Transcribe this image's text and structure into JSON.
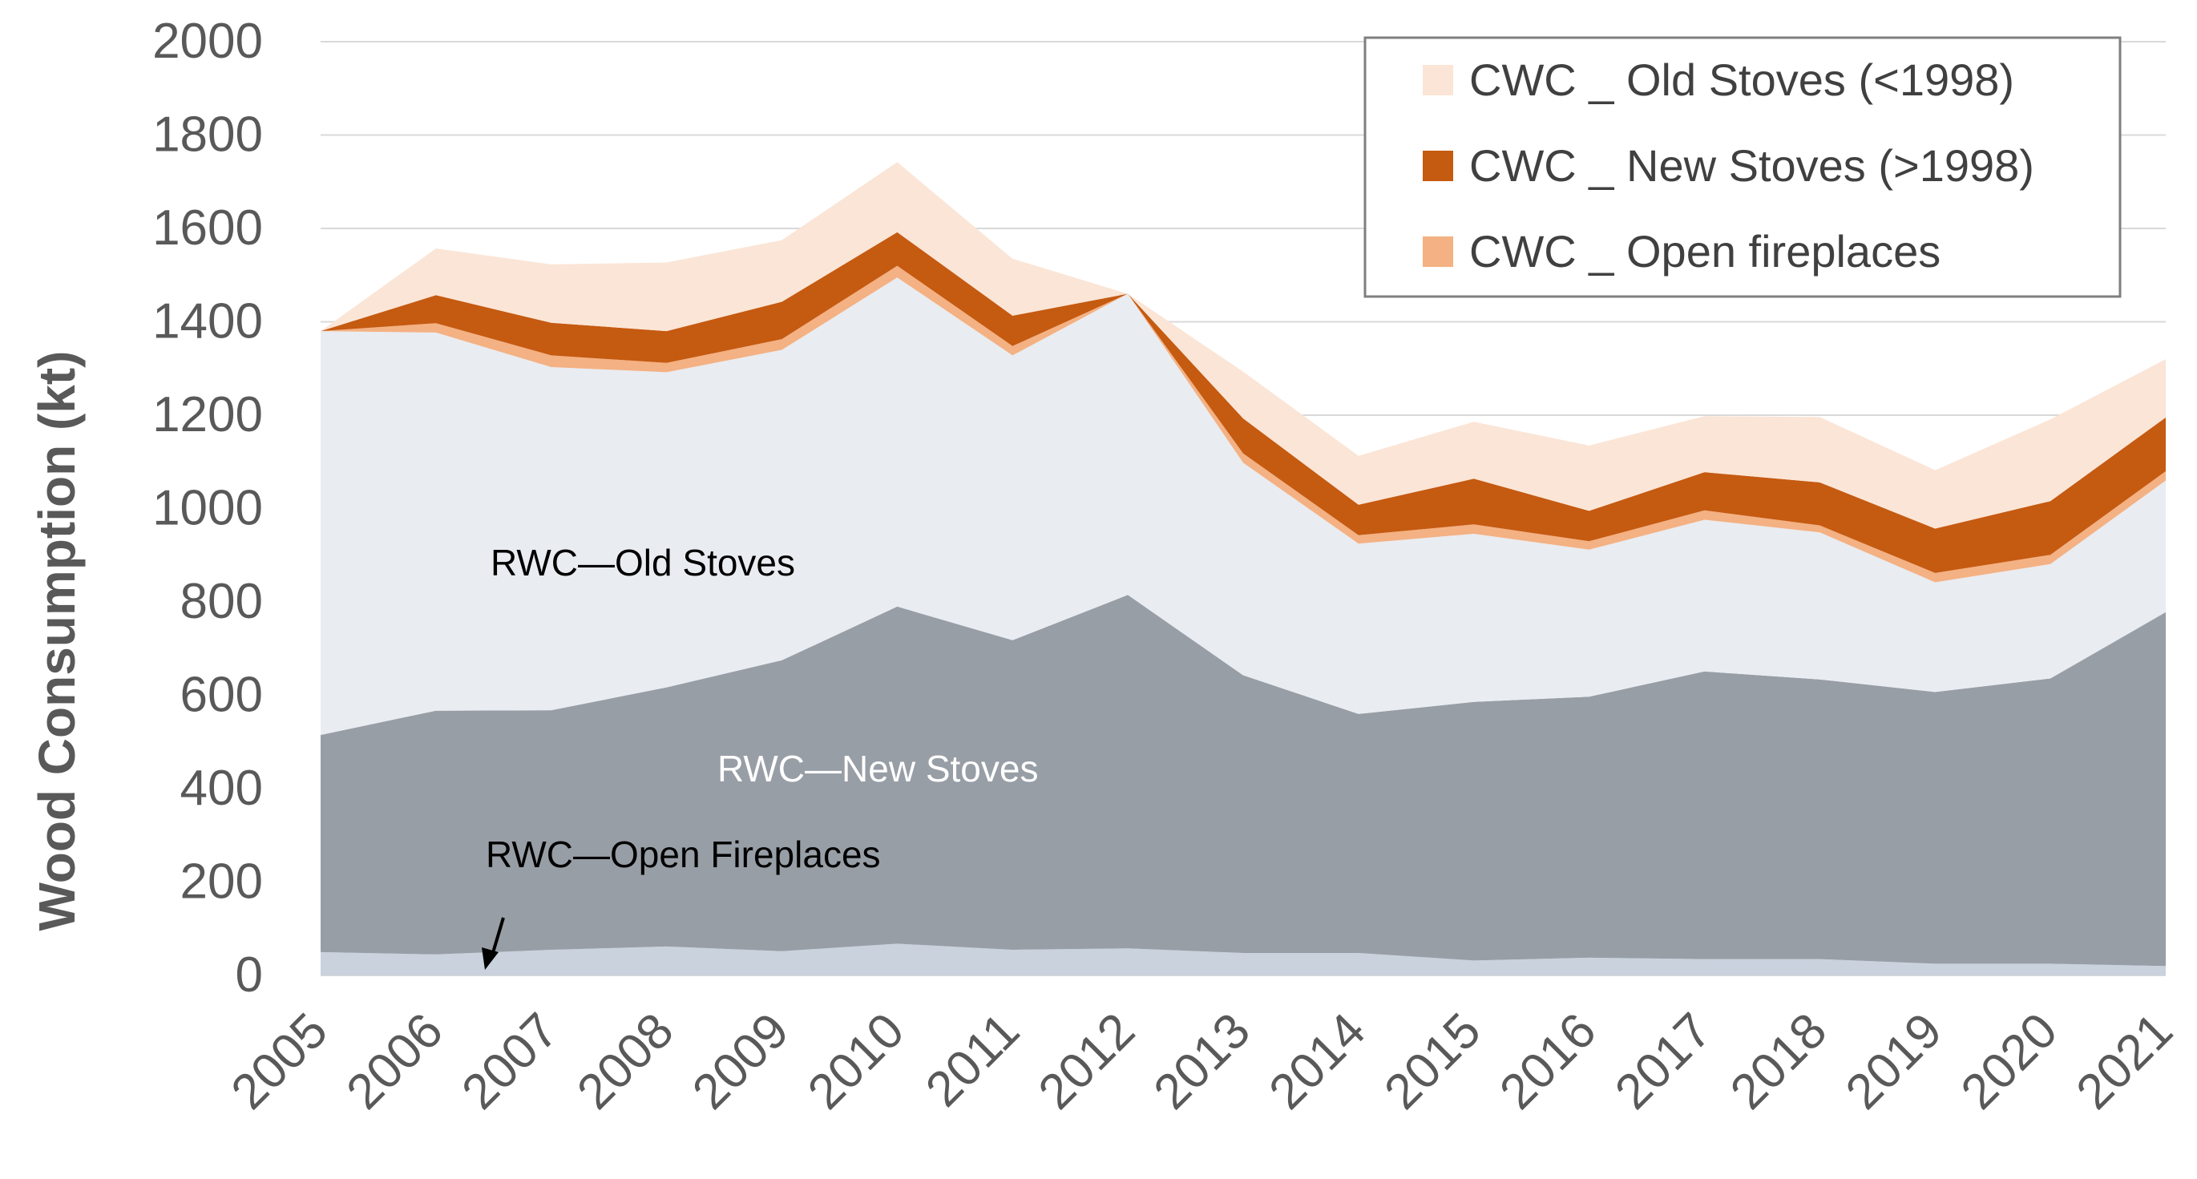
{
  "chart_data": {
    "type": "area",
    "stacked": true,
    "title": "",
    "xlabel": "",
    "ylabel": "Wood Consumption (kt)",
    "ylim": [
      0,
      2000
    ],
    "yticks": [
      0,
      200,
      400,
      600,
      800,
      1000,
      1200,
      1400,
      1600,
      1800,
      2000
    ],
    "grid": true,
    "legend_position": "top-right",
    "categories": [
      "2005",
      "2006",
      "2007",
      "2008",
      "2009",
      "2010",
      "2011",
      "2012",
      "2013",
      "2014",
      "2015",
      "2016",
      "2017",
      "2018",
      "2019",
      "2020",
      "2021"
    ],
    "series": [
      {
        "name": "RWC—Open Fireplaces",
        "color": "#c9d2dd",
        "in_legend": false,
        "values": [
          50,
          45,
          55,
          62,
          52,
          68,
          55,
          58,
          48,
          48,
          32,
          38,
          35,
          35,
          25,
          25,
          20
        ]
      },
      {
        "name": "RWC—New Stoves",
        "color": "#989ea6",
        "in_legend": false,
        "values": [
          465,
          522,
          513,
          555,
          623,
          722,
          663,
          757,
          595,
          512,
          554,
          559,
          616,
          599,
          582,
          611,
          758
        ]
      },
      {
        "name": "RWC—Old Stoves",
        "color": "#e9ecf1",
        "in_legend": false,
        "values": [
          865,
          810,
          735,
          675,
          665,
          705,
          610,
          645,
          455,
          365,
          360,
          315,
          325,
          315,
          235,
          245,
          282
        ]
      },
      {
        "name": "CWC _ Open fireplaces",
        "color": "#f4b183",
        "in_legend": true,
        "values": [
          0,
          20,
          25,
          20,
          23,
          25,
          20,
          0,
          20,
          18,
          20,
          18,
          20,
          15,
          20,
          20,
          20
        ]
      },
      {
        "name": "CWC _ New Stoves (>1998)",
        "color": "#c55a11",
        "in_legend": true,
        "values": [
          0,
          60,
          70,
          68,
          80,
          72,
          65,
          0,
          75,
          65,
          98,
          65,
          82,
          92,
          95,
          115,
          115
        ]
      },
      {
        "name": "CWC _ Old Stoves (<1998)",
        "color": "#fbe5d6",
        "in_legend": true,
        "values": [
          0,
          100,
          125,
          147,
          132,
          150,
          122,
          0,
          100,
          105,
          122,
          140,
          120,
          140,
          125,
          175,
          125
        ]
      }
    ],
    "legend_order": [
      "CWC _ Old Stoves (<1998)",
      "CWC _ New Stoves (>1998)",
      "CWC _ Open fireplaces"
    ],
    "annotations": [
      {
        "id": "old-stoves",
        "text": "RWC—Old Stoves",
        "color": "#000000"
      },
      {
        "id": "new-stoves",
        "text": "RWC—New Stoves",
        "color": "#ffffff"
      },
      {
        "id": "open-fireplaces",
        "text": "RWC—Open Fireplaces",
        "color": "#000000"
      }
    ]
  }
}
